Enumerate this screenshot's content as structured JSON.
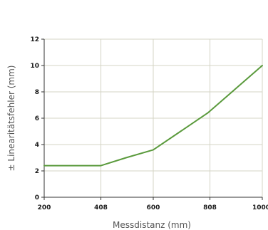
{
  "chart_data": {
    "type": "line",
    "title": "",
    "xlabel": "Messdistanz (mm)",
    "ylabel": "± Linearitätsfehler (mm)",
    "x_ticks": [
      "200",
      "408",
      "600",
      "808",
      "1000"
    ],
    "y_ticks": [
      "0",
      "2",
      "4",
      "6",
      "8",
      "10",
      "12"
    ],
    "xlim": [
      200,
      1000
    ],
    "ylim": [
      0,
      12
    ],
    "grid": true,
    "series": [
      {
        "color": "#5a9a3c",
        "x": [
          200,
          408,
          500,
          600,
          700,
          800,
          900,
          1000
        ],
        "y": [
          2.4,
          2.4,
          3.0,
          3.6,
          5.0,
          6.4,
          8.2,
          10.0
        ]
      }
    ],
    "colors": {
      "grid": "#d4d4c4",
      "axis": "#333333"
    }
  }
}
